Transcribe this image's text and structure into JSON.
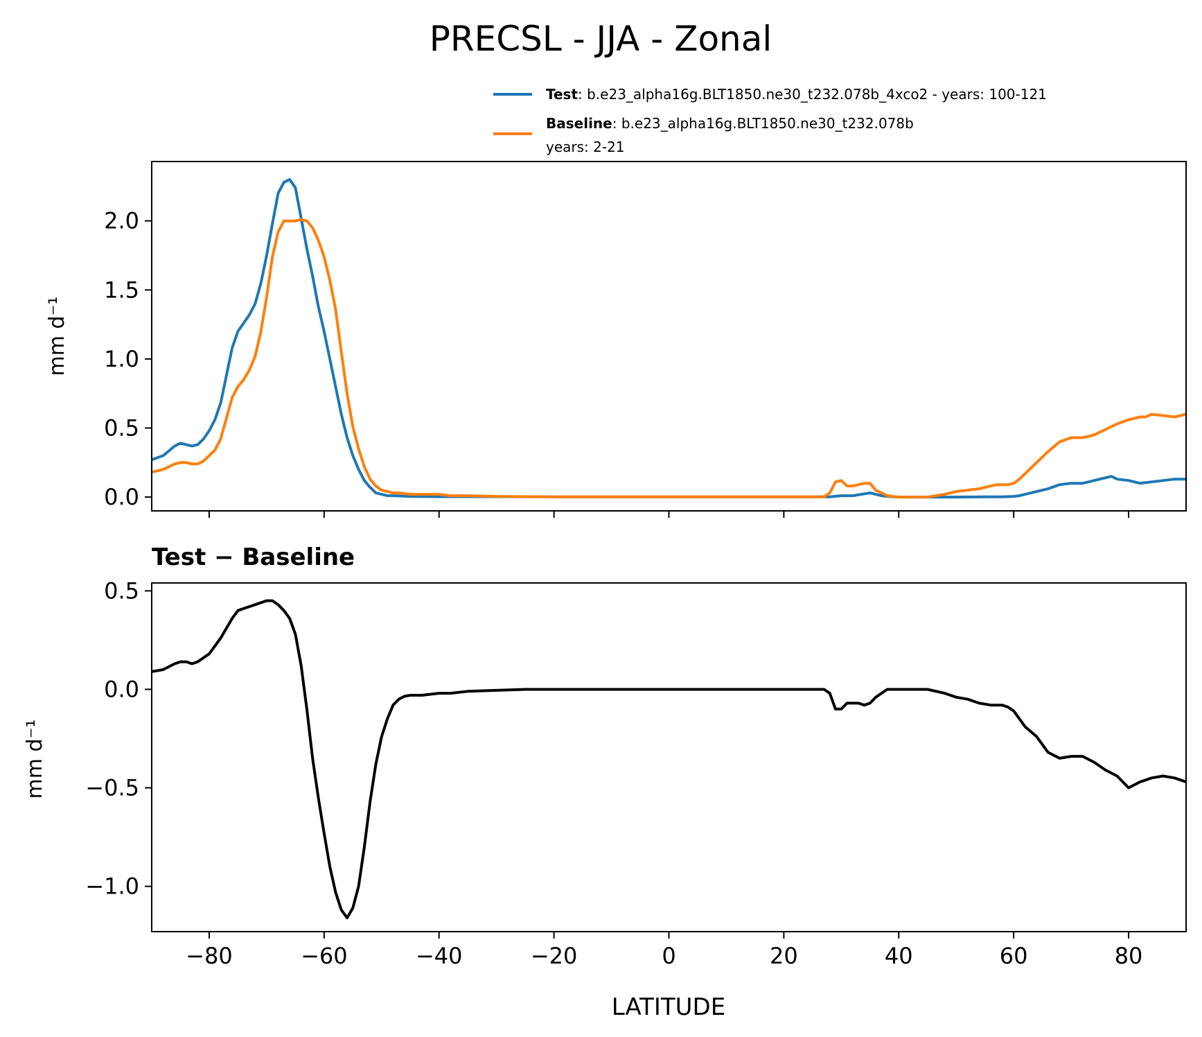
{
  "title": "PRECSL - JJA - Zonal",
  "legend": {
    "test_name": "Test",
    "test_desc": ": b.e23_alpha16g.BLT1850.ne30_t232.078b_4xco2 - years: 100-121",
    "base_name": "Baseline",
    "base_desc": ": b.e23_alpha16g.BLT1850.ne30_t232.078b",
    "base_desc2": "years: 2-21"
  },
  "colors": {
    "test": "#1f77b4",
    "baseline": "#ff7f0e",
    "diff": "#000000"
  },
  "chart_data": [
    {
      "type": "line",
      "ylabel": "mm d⁻¹",
      "xlabel": "",
      "xlim": [
        -90,
        90
      ],
      "ylim": [
        -0.1,
        2.43
      ],
      "yticks": [
        0.0,
        0.5,
        1.0,
        1.5,
        2.0
      ],
      "ytick_labels": [
        "0.0",
        "0.5",
        "1.0",
        "1.5",
        "2.0"
      ],
      "xticks": [
        -80,
        -60,
        -40,
        -20,
        0,
        20,
        40,
        60,
        80
      ],
      "series": [
        {
          "name": "Test",
          "x": [
            -90,
            -88,
            -86,
            -85,
            -84,
            -83,
            -82,
            -81,
            -80,
            -79,
            -78,
            -77,
            -76,
            -75,
            -74,
            -73,
            -72,
            -71,
            -70,
            -69,
            -68,
            -67,
            -66,
            -65,
            -64,
            -63,
            -62,
            -61,
            -60,
            -59,
            -58,
            -57,
            -56,
            -55,
            -54,
            -53,
            -52,
            -51,
            -50,
            -49,
            -48,
            -45,
            -40,
            -30,
            -20,
            0,
            20,
            28,
            30,
            32,
            35,
            36,
            37,
            38,
            40,
            45,
            50,
            55,
            58,
            60,
            61,
            62,
            64,
            66,
            68,
            70,
            72,
            74,
            76,
            77,
            78,
            80,
            81,
            82,
            84,
            86,
            88,
            90
          ],
          "values": [
            0.27,
            0.3,
            0.37,
            0.39,
            0.38,
            0.37,
            0.38,
            0.42,
            0.48,
            0.56,
            0.68,
            0.88,
            1.08,
            1.2,
            1.26,
            1.32,
            1.4,
            1.55,
            1.75,
            1.98,
            2.2,
            2.28,
            2.3,
            2.24,
            2.02,
            1.8,
            1.6,
            1.38,
            1.2,
            1.0,
            0.8,
            0.6,
            0.43,
            0.3,
            0.2,
            0.12,
            0.07,
            0.03,
            0.02,
            0.01,
            0.01,
            0.005,
            0.003,
            0.003,
            0.002,
            0.002,
            0.002,
            0.002,
            0.01,
            0.01,
            0.03,
            0.02,
            0.01,
            0.005,
            0.0,
            0.0,
            0.0,
            0.002,
            0.002,
            0.005,
            0.01,
            0.02,
            0.04,
            0.06,
            0.09,
            0.1,
            0.1,
            0.12,
            0.14,
            0.15,
            0.13,
            0.12,
            0.11,
            0.1,
            0.11,
            0.12,
            0.13,
            0.13
          ]
        },
        {
          "name": "Baseline",
          "x": [
            -90,
            -88,
            -86,
            -85,
            -84,
            -83,
            -82,
            -81,
            -80,
            -79,
            -78,
            -77,
            -76,
            -75,
            -74,
            -73,
            -72,
            -71,
            -70,
            -69,
            -68,
            -67,
            -66,
            -65,
            -64,
            -63,
            -62,
            -61,
            -60,
            -59,
            -58,
            -57,
            -56,
            -55,
            -54,
            -53,
            -52,
            -51,
            -50,
            -49,
            -48,
            -47,
            -46,
            -45,
            -44,
            -43,
            -40,
            -38,
            -35,
            -30,
            -25,
            -20,
            0,
            20,
            27,
            28,
            29,
            30,
            31,
            32,
            33,
            34,
            35,
            36,
            37,
            38,
            40,
            45,
            48,
            50,
            52,
            54,
            56,
            57,
            58,
            59,
            60,
            61,
            62,
            64,
            66,
            68,
            70,
            71,
            72,
            74,
            76,
            78,
            80,
            82,
            83,
            84,
            86,
            88,
            90
          ],
          "values": [
            0.18,
            0.2,
            0.24,
            0.25,
            0.25,
            0.24,
            0.24,
            0.26,
            0.3,
            0.34,
            0.42,
            0.57,
            0.72,
            0.8,
            0.85,
            0.92,
            1.02,
            1.2,
            1.45,
            1.74,
            1.92,
            2.0,
            2.0,
            2.0,
            2.01,
            2.0,
            1.95,
            1.86,
            1.74,
            1.57,
            1.36,
            1.05,
            0.75,
            0.51,
            0.35,
            0.22,
            0.13,
            0.08,
            0.05,
            0.04,
            0.03,
            0.03,
            0.025,
            0.02,
            0.02,
            0.02,
            0.02,
            0.01,
            0.01,
            0.005,
            0.003,
            0.002,
            0.002,
            0.002,
            0.002,
            0.03,
            0.11,
            0.12,
            0.08,
            0.08,
            0.09,
            0.1,
            0.1,
            0.05,
            0.03,
            0.01,
            0.0,
            0.0,
            0.02,
            0.04,
            0.05,
            0.06,
            0.08,
            0.09,
            0.09,
            0.09,
            0.1,
            0.13,
            0.17,
            0.25,
            0.33,
            0.4,
            0.43,
            0.43,
            0.43,
            0.45,
            0.49,
            0.53,
            0.56,
            0.58,
            0.58,
            0.6,
            0.59,
            0.58,
            0.6
          ]
        }
      ]
    },
    {
      "type": "line",
      "title": "Test − Baseline",
      "ylabel": "mm d⁻¹",
      "xlabel": "LATITUDE",
      "xlim": [
        -90,
        90
      ],
      "ylim": [
        -1.23,
        0.54
      ],
      "yticks": [
        -1.0,
        -0.5,
        0.0,
        0.5
      ],
      "ytick_labels": [
        "−1.0",
        "−0.5",
        "0.0",
        "0.5"
      ],
      "xticks": [
        -80,
        -60,
        -40,
        -20,
        0,
        20,
        40,
        60,
        80
      ],
      "xtick_labels": [
        "−80",
        "−60",
        "−40",
        "−20",
        "0",
        "20",
        "40",
        "60",
        "80"
      ],
      "series": [
        {
          "name": "Test − Baseline",
          "x": [
            -90,
            -88,
            -86,
            -85,
            -84,
            -83,
            -82,
            -81,
            -80,
            -79,
            -78,
            -77,
            -76,
            -75,
            -74,
            -73,
            -72,
            -71,
            -70,
            -69,
            -68,
            -67,
            -66,
            -65,
            -64,
            -63,
            -62,
            -61,
            -60,
            -59,
            -58,
            -57,
            -56,
            -55,
            -54,
            -53,
            -52,
            -51,
            -50,
            -49,
            -48,
            -47,
            -46,
            -45,
            -44,
            -43,
            -40,
            -38,
            -35,
            -30,
            -25,
            -20,
            0,
            20,
            27,
            28,
            29,
            30,
            31,
            32,
            33,
            34,
            35,
            36,
            37,
            38,
            40,
            45,
            48,
            50,
            52,
            54,
            56,
            57,
            58,
            59,
            60,
            61,
            62,
            64,
            66,
            68,
            70,
            71,
            72,
            74,
            76,
            78,
            80,
            82,
            83,
            84,
            86,
            88,
            90
          ],
          "values": [
            0.09,
            0.1,
            0.13,
            0.14,
            0.14,
            0.13,
            0.14,
            0.16,
            0.18,
            0.22,
            0.26,
            0.31,
            0.36,
            0.4,
            0.41,
            0.42,
            0.43,
            0.44,
            0.45,
            0.45,
            0.43,
            0.4,
            0.36,
            0.28,
            0.12,
            -0.1,
            -0.35,
            -0.55,
            -0.73,
            -0.9,
            -1.03,
            -1.12,
            -1.16,
            -1.11,
            -1.0,
            -0.8,
            -0.57,
            -0.38,
            -0.24,
            -0.15,
            -0.08,
            -0.05,
            -0.035,
            -0.03,
            -0.03,
            -0.03,
            -0.02,
            -0.02,
            -0.01,
            -0.005,
            0.0,
            0.0,
            0.0,
            0.0,
            0.0,
            -0.02,
            -0.1,
            -0.1,
            -0.07,
            -0.07,
            -0.07,
            -0.08,
            -0.07,
            -0.04,
            -0.02,
            0.0,
            0.0,
            0.0,
            -0.02,
            -0.04,
            -0.05,
            -0.07,
            -0.08,
            -0.08,
            -0.08,
            -0.09,
            -0.11,
            -0.15,
            -0.19,
            -0.24,
            -0.32,
            -0.35,
            -0.34,
            -0.34,
            -0.34,
            -0.37,
            -0.41,
            -0.44,
            -0.5,
            -0.47,
            -0.46,
            -0.45,
            -0.44,
            -0.45,
            -0.47
          ]
        }
      ]
    }
  ]
}
